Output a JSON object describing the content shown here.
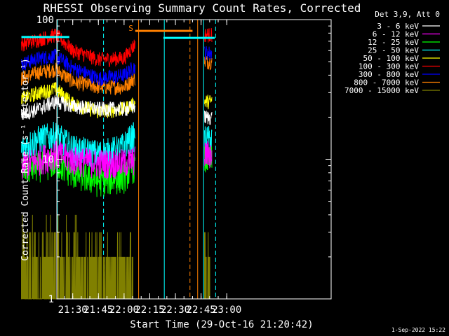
{
  "chart_data": {
    "type": "line",
    "title": "RHESSI Observing Summary Count Rates, Corrected",
    "xlabel": "Start Time (29-Oct-16 21:20:42)",
    "ylabel": "Corrected Count Rate (s⁻¹ detector⁻¹)",
    "y_scale": "log",
    "ylim": [
      1,
      100
    ],
    "xlim_min": [
      20.7,
      181
    ],
    "x_ticks": [
      {
        "label": "21:30",
        "min": 30
      },
      {
        "label": "21:45",
        "min": 45
      },
      {
        "label": "22:00",
        "min": 60
      },
      {
        "label": "22:15",
        "min": 75
      },
      {
        "label": "22:30",
        "min": 90
      },
      {
        "label": "22:45",
        "min": 105
      },
      {
        "label": "23:00",
        "min": 120
      }
    ],
    "y_ticks": [
      {
        "label": "1",
        "value": 1
      },
      {
        "label": "10",
        "value": 10
      },
      {
        "label": "100",
        "value": 100
      }
    ],
    "legend_title": "Det 3,9, Att 0",
    "legend_placement": "right",
    "data_end_min": 66.5,
    "data_resume_min": 107,
    "data_stop_min": 111.5,
    "s_marker": {
      "label": "S",
      "min": 65.5
    },
    "series": [
      {
        "name": "3 - 6 keV",
        "color": "#ffffff",
        "pts": [
          [
            0,
            21
          ],
          [
            10,
            23
          ],
          [
            20,
            26
          ],
          [
            30,
            24
          ],
          [
            45,
            23
          ],
          [
            62,
            23
          ],
          [
            66,
            24
          ]
        ],
        "after": 20
      },
      {
        "name": "6 - 12 keV",
        "color": "#ff00ff",
        "pts": [
          [
            0,
            9
          ],
          [
            10,
            10
          ],
          [
            20,
            11
          ],
          [
            30,
            10
          ],
          [
            45,
            9.5
          ],
          [
            60,
            9.5
          ],
          [
            66,
            10
          ]
        ],
        "after": 11
      },
      {
        "name": "12 - 25 keV",
        "color": "#00ff00",
        "pts": [
          [
            0,
            8.5
          ],
          [
            10,
            9
          ],
          [
            20,
            9.5
          ],
          [
            30,
            8
          ],
          [
            45,
            7
          ],
          [
            60,
            7.5
          ],
          [
            66,
            9
          ]
        ],
        "after": 10
      },
      {
        "name": "25 - 50 keV",
        "color": "#00ffff",
        "pts": [
          [
            0,
            12
          ],
          [
            10,
            14
          ],
          [
            20,
            15
          ],
          [
            30,
            12
          ],
          [
            45,
            11
          ],
          [
            58,
            12
          ],
          [
            66,
            15
          ]
        ],
        "after": 14
      },
      {
        "name": "50 - 100 keV",
        "color": "#ffff00",
        "pts": [
          [
            0,
            27
          ],
          [
            10,
            30
          ],
          [
            20,
            32
          ],
          [
            30,
            25
          ],
          [
            45,
            22
          ],
          [
            60,
            23
          ],
          [
            66,
            25
          ]
        ],
        "after": 26
      },
      {
        "name": "100 - 300 keV",
        "color": "#ff0000",
        "pts": [
          [
            0,
            67
          ],
          [
            10,
            72
          ],
          [
            20,
            78
          ],
          [
            30,
            60
          ],
          [
            45,
            52
          ],
          [
            60,
            53
          ],
          [
            66,
            66
          ]
        ],
        "after": 78
      },
      {
        "name": "300 - 800 keV",
        "color": "#0000ff",
        "pts": [
          [
            0,
            48
          ],
          [
            10,
            53
          ],
          [
            20,
            55
          ],
          [
            30,
            45
          ],
          [
            45,
            38
          ],
          [
            60,
            40
          ],
          [
            66,
            46
          ]
        ],
        "after": 58
      },
      {
        "name": "800 - 7000 keV",
        "color": "#ff8000",
        "pts": [
          [
            0,
            38
          ],
          [
            10,
            42
          ],
          [
            20,
            44
          ],
          [
            30,
            36
          ],
          [
            45,
            33
          ],
          [
            60,
            33
          ],
          [
            66,
            38
          ]
        ],
        "after": 50
      },
      {
        "name": "7000 - 15000 keV",
        "color": "#808000",
        "pts": [
          [
            0,
            1.5
          ],
          [
            10,
            1.7
          ],
          [
            20,
            2
          ],
          [
            30,
            1.5
          ],
          [
            45,
            1.4
          ],
          [
            60,
            1.5
          ],
          [
            66,
            1.6
          ]
        ],
        "after": 1.6
      }
    ],
    "attenuator_bars": [
      {
        "color": "#00ffff",
        "from_min": 0,
        "to_min": 28,
        "value": 75
      },
      {
        "color": "#ff8000",
        "from_min": 66.5,
        "to_min": 100,
        "value": 83
      },
      {
        "color": "#00ffff",
        "from_min": 83,
        "to_min": 113,
        "value": 74
      }
    ],
    "vertical_lines": [
      {
        "min": 21,
        "color": "#00ffff",
        "style": "solid"
      },
      {
        "min": 48,
        "color": "#00ffff",
        "style": "dashed"
      },
      {
        "min": 68.5,
        "color": "#ff8000",
        "style": "solid"
      },
      {
        "min": 83.5,
        "color": "#00ffff",
        "style": "solid"
      },
      {
        "min": 98.5,
        "color": "#ff8000",
        "style": "dashed"
      },
      {
        "min": 103,
        "color": "#ff8000",
        "style": "solid"
      },
      {
        "min": 106.5,
        "color": "#00ffff",
        "style": "solid"
      },
      {
        "min": 113.5,
        "color": "#00ffff",
        "style": "dashed"
      }
    ]
  },
  "footer": {
    "timestamp": "1-Sep-2022 15:22"
  }
}
